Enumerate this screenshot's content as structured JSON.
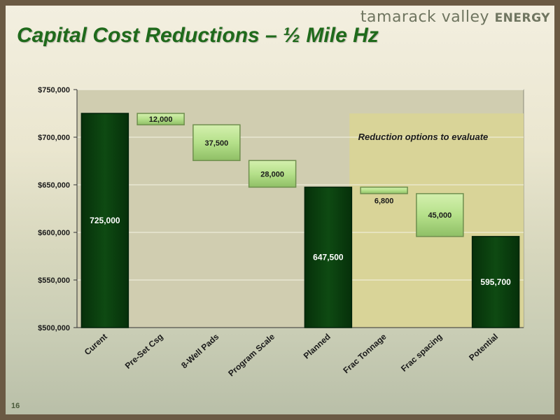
{
  "header": {
    "brand_light": "tamarack valley",
    "brand_bold": "ENERGY",
    "title": "Capital Cost Reductions – ½ Mile Hz",
    "page_number": "16"
  },
  "colors": {
    "title": "#1f6a1b",
    "total_bar": "#0e4a12",
    "step_bar": "#b5e08a",
    "plot_bg": "#d0cdb0",
    "highlight_region": "#d9d596"
  },
  "chart_data": {
    "type": "bar",
    "subtype": "waterfall",
    "categories": [
      "Curent",
      "Pre-Set Csg",
      "8-Well Pads",
      "Program Scale",
      "Planned",
      "Frac Tonnage",
      "Frac spacing",
      "Potential"
    ],
    "values": [
      725000,
      -12000,
      -37500,
      -28000,
      647500,
      -6800,
      -45000,
      595700
    ],
    "bar_kind": [
      "total",
      "step",
      "step",
      "step",
      "total",
      "step",
      "step",
      "total"
    ],
    "data_labels": [
      "725,000",
      "12,000",
      "37,500",
      "28,000",
      "647,500",
      "6,800",
      "45,000",
      "595,700"
    ],
    "ylim": [
      500000,
      750000
    ],
    "yticks": [
      500000,
      550000,
      600000,
      650000,
      700000,
      750000
    ],
    "ytick_labels": [
      "$500,000",
      "$550,000",
      "$600,000",
      "$650,000",
      "$700,000",
      "$750,000"
    ],
    "grid": true,
    "annotation": "Reduction options to evaluate",
    "highlight_categories": [
      "Frac Tonnage",
      "Frac spacing",
      "Potential"
    ]
  }
}
